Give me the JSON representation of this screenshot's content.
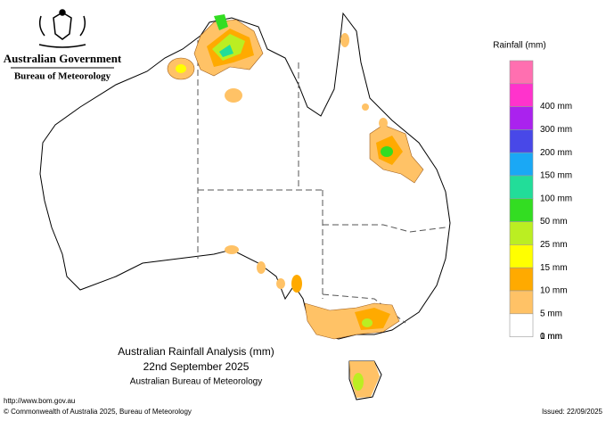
{
  "header": {
    "government": "Australian Government",
    "agency": "Bureau of Meteorology"
  },
  "legend": {
    "title": "Rainfall (mm)",
    "items": [
      {
        "color": "#ff6fb0",
        "label": null
      },
      {
        "color": "#ff33cc",
        "label": "400 mm"
      },
      {
        "color": "#aa22ee",
        "label": "300 mm"
      },
      {
        "color": "#4848e8",
        "label": "200 mm"
      },
      {
        "color": "#1aa8f5",
        "label": "150 mm"
      },
      {
        "color": "#22dd99",
        "label": "100 mm"
      },
      {
        "color": "#33dd22",
        "label": "50 mm"
      },
      {
        "color": "#bbee22",
        "label": "25 mm"
      },
      {
        "color": "#ffff00",
        "label": "15 mm"
      },
      {
        "color": "#ffaa00",
        "label": "10 mm"
      },
      {
        "color": "#ffc266",
        "label": "5 mm"
      },
      {
        "color": "#ffffff",
        "label": "1 mm"
      }
    ],
    "bottom_label": "0 mm"
  },
  "caption": {
    "title": "Australian Rainfall Analysis (mm)",
    "date": "22nd September 2025",
    "source": "Australian Bureau of Meteorology"
  },
  "footer": {
    "url": "http://www.bom.gov.au",
    "copyright": "© Commonwealth of Australia 2025, Bureau of Meteorology",
    "issued": "Issued: 22/09/2025"
  }
}
